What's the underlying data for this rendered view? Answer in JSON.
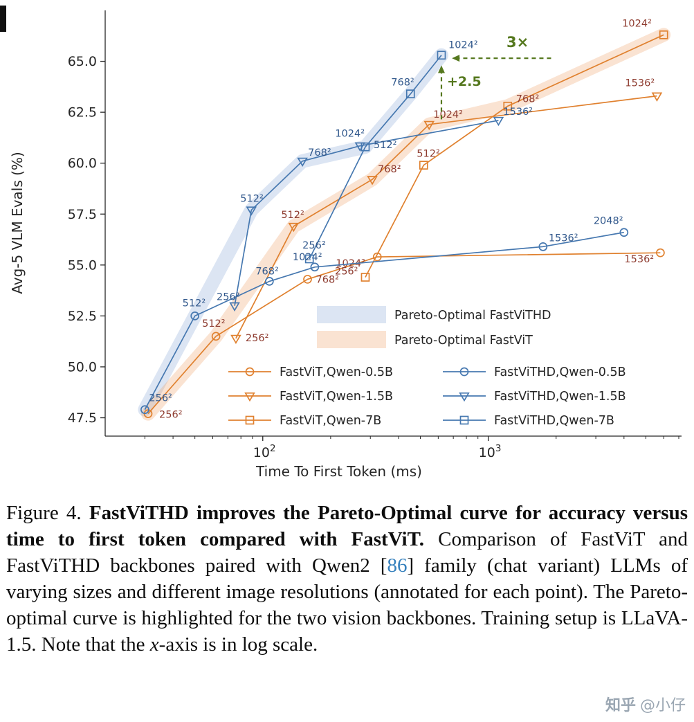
{
  "watermark": {
    "brand": "知乎",
    "user": "@小仔"
  },
  "caption": {
    "runs": [
      {
        "text": "Figure 4.  ",
        "style": "normal"
      },
      {
        "text": "FastViTHD improves the Pareto-Optimal curve for accuracy versus time to first token compared with FastViT.",
        "style": "bold"
      },
      {
        "text": " Comparison of FastViT and FastViTHD backbones paired with Qwen2 [",
        "style": "normal"
      },
      {
        "text": "86",
        "style": "cite"
      },
      {
        "text": "] family (chat variant) LLMs of varying sizes and different image resolutions (annotated for each point).  The Pareto-optimal curve is highlighted for the two vision backbones. Training setup is LLaVA-1.5. Note that the ",
        "style": "normal"
      },
      {
        "text": "x",
        "style": "italic"
      },
      {
        "text": "-axis is in log scale.",
        "style": "normal"
      }
    ]
  },
  "chart_data": {
    "type": "line",
    "title": "",
    "xlabel": "Time To First Token (ms)",
    "ylabel": "Avg-5 VLM Evals (%)",
    "x_scale": "log",
    "xlim": [
      20,
      7200
    ],
    "ylim": [
      46.6,
      67.5
    ],
    "y_ticks": [
      47.5,
      50.0,
      52.5,
      55.0,
      57.5,
      60.0,
      62.5,
      65.0
    ],
    "x_ticks": [
      {
        "value": 100,
        "base": "10",
        "exp": "2"
      },
      {
        "value": 1000,
        "base": "10",
        "exp": "3"
      }
    ],
    "x_minor_ticks": [
      30,
      40,
      50,
      60,
      70,
      80,
      90,
      200,
      300,
      400,
      500,
      600,
      700,
      800,
      900,
      2000,
      3000,
      4000,
      5000,
      6000,
      7000
    ],
    "grid": false,
    "colors": {
      "fastvit": "#E0812F",
      "fastvithd": "#4678B0",
      "fastvit_band": "rgba(240,163,105,0.30)",
      "fastvithd_band": "rgba(128,160,212,0.28)",
      "fastvit_label": "#8E3B2F",
      "fastvithd_label": "#31588C",
      "annotation": "#55781E",
      "axis": "#262626"
    },
    "series": [
      {
        "name": "FastViT,Qwen-0.5B",
        "family": "fastvit",
        "marker": "circle",
        "points": [
          {
            "res": "256²",
            "ttft_ms": 31,
            "acc": 47.7,
            "dx": 16,
            "dy": 6
          },
          {
            "res": "512²",
            "ttft_ms": 62,
            "acc": 51.5,
            "dx": -20,
            "dy": -14
          },
          {
            "res": "768²",
            "ttft_ms": 158,
            "acc": 54.3,
            "dx": 12,
            "dy": 5
          },
          {
            "res": "1024²",
            "ttft_ms": 322,
            "acc": 55.4,
            "dx": -60,
            "dy": 14
          },
          {
            "res": "1536²",
            "ttft_ms": 5800,
            "acc": 55.6,
            "dx": -52,
            "dy": 14
          }
        ]
      },
      {
        "name": "FastViT,Qwen-1.5B",
        "family": "fastvit",
        "marker": "triangle",
        "points": [
          {
            "res": "256²",
            "ttft_ms": 76,
            "acc": 51.4,
            "dx": 14,
            "dy": 4
          },
          {
            "res": "512²",
            "ttft_ms": 137,
            "acc": 56.9,
            "dx": -18,
            "dy": -12
          },
          {
            "res": "768²",
            "ttft_ms": 306,
            "acc": 59.2,
            "dx": 8,
            "dy": -10
          },
          {
            "res": "1024²",
            "ttft_ms": 547,
            "acc": 61.9,
            "dx": 6,
            "dy": -10
          },
          {
            "res": "1536²",
            "ttft_ms": 5600,
            "acc": 63.3,
            "dx": -46,
            "dy": -14
          }
        ]
      },
      {
        "name": "FastViT,Qwen-7B",
        "family": "fastvit",
        "marker": "square",
        "points": [
          {
            "res": "256²",
            "ttft_ms": 285,
            "acc": 54.4,
            "dx": -44,
            "dy": -4
          },
          {
            "res": "512²",
            "ttft_ms": 517,
            "acc": 59.9,
            "dx": -10,
            "dy": -12
          },
          {
            "res": "768²",
            "ttft_ms": 1220,
            "acc": 62.8,
            "dx": 12,
            "dy": -6
          },
          {
            "res": "1024²",
            "ttft_ms": 6000,
            "acc": 66.3,
            "dx": -60,
            "dy": -12
          }
        ]
      },
      {
        "name": "FastViTHD,Qwen-0.5B",
        "family": "fastvithd",
        "marker": "circle",
        "points": [
          {
            "res": "256²",
            "ttft_ms": 30,
            "acc": 47.9,
            "dx": 6,
            "dy": -12
          },
          {
            "res": "512²",
            "ttft_ms": 50,
            "acc": 52.5,
            "dx": -18,
            "dy": -14
          },
          {
            "res": "768²",
            "ttft_ms": 107,
            "acc": 54.2,
            "dx": -20,
            "dy": -10
          },
          {
            "res": "1024²",
            "ttft_ms": 170,
            "acc": 54.9,
            "dx": -32,
            "dy": -10
          },
          {
            "res": "1536²",
            "ttft_ms": 1750,
            "acc": 55.9,
            "dx": 8,
            "dy": -8
          },
          {
            "res": "2048²",
            "ttft_ms": 4000,
            "acc": 56.6,
            "dx": -44,
            "dy": -12
          }
        ]
      },
      {
        "name": "FastViTHD,Qwen-1.5B",
        "family": "fastvithd",
        "marker": "triangle",
        "points": [
          {
            "res": "256²",
            "ttft_ms": 75,
            "acc": 53.0,
            "dx": -26,
            "dy": -8
          },
          {
            "res": "512²",
            "ttft_ms": 89,
            "acc": 57.7,
            "dx": -16,
            "dy": -12
          },
          {
            "res": "768²",
            "ttft_ms": 150,
            "acc": 60.1,
            "dx": 8,
            "dy": -8
          },
          {
            "res": "1024²",
            "ttft_ms": 270,
            "acc": 60.85,
            "dx": -36,
            "dy": -13
          },
          {
            "res": "1536²",
            "ttft_ms": 1110,
            "acc": 62.1,
            "dx": 7,
            "dy": -8
          }
        ]
      },
      {
        "name": "FastViTHD,Qwen-7B",
        "family": "fastvithd",
        "marker": "square",
        "points": [
          {
            "res": "256²",
            "ttft_ms": 161,
            "acc": 55.3,
            "dx": -10,
            "dy": -15
          },
          {
            "res": "512²",
            "ttft_ms": 285,
            "acc": 60.8,
            "dx": 12,
            "dy": 2
          },
          {
            "res": "768²",
            "ttft_ms": 452,
            "acc": 63.4,
            "dx": -28,
            "dy": -12
          },
          {
            "res": "1024²",
            "ttft_ms": 620,
            "acc": 65.3,
            "dx": 10,
            "dy": -10
          }
        ]
      }
    ],
    "pareto_bands": [
      {
        "family": "fastvithd",
        "path": [
          [
            30,
            47.9
          ],
          [
            50,
            52.5
          ],
          [
            89,
            57.7
          ],
          [
            150,
            60.1
          ],
          [
            285,
            60.8
          ],
          [
            452,
            63.4
          ],
          [
            620,
            65.3
          ]
        ]
      },
      {
        "family": "fastvit",
        "path": [
          [
            31,
            47.7
          ],
          [
            62,
            51.5
          ],
          [
            137,
            56.9
          ],
          [
            306,
            59.2
          ],
          [
            547,
            61.9
          ],
          [
            1220,
            62.8
          ],
          [
            6000,
            66.3
          ]
        ]
      }
    ],
    "annotations": {
      "gain": {
        "label": "+2.5",
        "ttft_ms": 620,
        "acc_from": 62.15,
        "acc_to": 64.8,
        "label_acc": 63.8
      },
      "speedup": {
        "label": "3×",
        "acc": 65.15,
        "ttft_from_ms": 1900,
        "ttft_to_ms": 690,
        "label_ttft_ms": 1350
      }
    },
    "legend": {
      "patches": [
        {
          "label": "Pareto-Optimal FastViTHD",
          "family": "fastvithd"
        },
        {
          "label": "Pareto-Optimal FastViT",
          "family": "fastvit"
        }
      ]
    }
  }
}
